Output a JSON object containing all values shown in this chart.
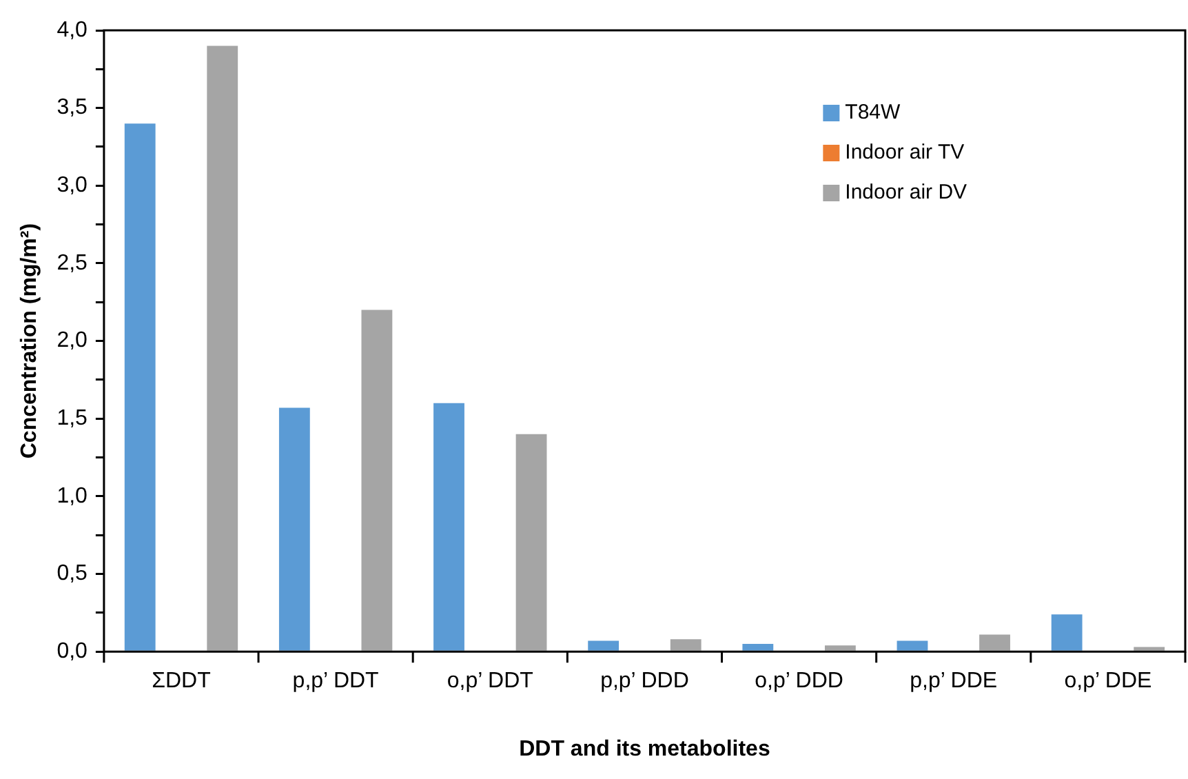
{
  "chart_data": {
    "type": "bar",
    "xlabel": "DDT and its metabolites",
    "ylabel": "Ccncentration (mg/m²)",
    "categories": [
      "ΣDDT",
      "p,p’ DDT",
      "o,p’ DDT",
      "p,p’ DDD",
      "o,p’ DDD",
      "p,p’ DDE",
      "o,p’ DDE"
    ],
    "series": [
      {
        "name": "T84W",
        "color": "#5b9bd5",
        "values": [
          3.4,
          1.57,
          1.6,
          0.07,
          0.05,
          0.07,
          0.24
        ]
      },
      {
        "name": "Indoor air TV",
        "color": "#ed7d31",
        "values": [
          0,
          0,
          0,
          0,
          0,
          0,
          0
        ]
      },
      {
        "name": "Indoor air DV",
        "color": "#a5a5a5",
        "values": [
          3.9,
          2.2,
          1.4,
          0.08,
          0.04,
          0.11,
          0.03
        ]
      }
    ],
    "ylim": [
      0,
      4
    ],
    "yticks": [
      {
        "value": 0,
        "label": "0,0"
      },
      {
        "value": 0.25,
        "label": null
      },
      {
        "value": 0.5,
        "label": "0,5"
      },
      {
        "value": 0.75,
        "label": null
      },
      {
        "value": 1,
        "label": "1,0"
      },
      {
        "value": 1.25,
        "label": null
      },
      {
        "value": 1.5,
        "label": "1,5"
      },
      {
        "value": 1.75,
        "label": null
      },
      {
        "value": 2,
        "label": "2,0"
      },
      {
        "value": 2.25,
        "label": null
      },
      {
        "value": 2.5,
        "label": "2,5"
      },
      {
        "value": 2.75,
        "label": null
      },
      {
        "value": 3,
        "label": "3,0"
      },
      {
        "value": 3.25,
        "label": null
      },
      {
        "value": 3.5,
        "label": "3,5"
      },
      {
        "value": 3.75,
        "label": null
      },
      {
        "value": 4,
        "label": "4,0"
      }
    ],
    "grid": false,
    "legend": "top right"
  }
}
